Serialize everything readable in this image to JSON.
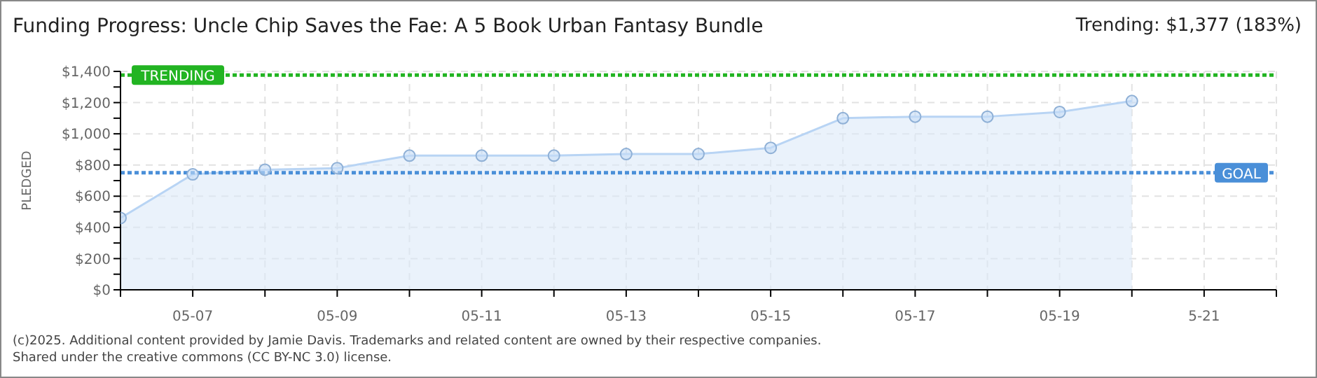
{
  "chart_data": {
    "type": "area",
    "title": "Funding Progress: Uncle Chip Saves the Fae: A 5 Book Urban Fantasy Bundle",
    "subtitle": "Trending: $1,377 (183%)",
    "ylabel": "PLEDGED",
    "categories": [
      null,
      "05-07",
      null,
      "05-09",
      null,
      "05-11",
      null,
      "05-13",
      null,
      "05-15",
      null,
      "05-17",
      null,
      "05-19",
      null,
      "5-21",
      null
    ],
    "series": [
      {
        "color": "#b8d4f4",
        "values": [
          460,
          740,
          770,
          780,
          860,
          860,
          860,
          870,
          870,
          910,
          1100,
          1110,
          1110,
          1140,
          1210,
          null,
          null
        ]
      }
    ],
    "ylim": [
      0,
      1400
    ],
    "yticks": [
      {
        "value": 0,
        "label": "$0"
      },
      {
        "value": 100,
        "label": null
      },
      {
        "value": 200,
        "label": "$200"
      },
      {
        "value": 300,
        "label": null
      },
      {
        "value": 400,
        "label": "$400"
      },
      {
        "value": 500,
        "label": null
      },
      {
        "value": 600,
        "label": "$600"
      },
      {
        "value": 700,
        "label": null
      },
      {
        "value": 800,
        "label": "$800"
      },
      {
        "value": 900,
        "label": null
      },
      {
        "value": 1000,
        "label": "$1,000"
      },
      {
        "value": 1100,
        "label": null
      },
      {
        "value": 1200,
        "label": "$1,200"
      },
      {
        "value": 1300,
        "label": null
      },
      {
        "value": 1400,
        "label": "$1,400"
      }
    ],
    "ref_lines": [
      {
        "axis": "y",
        "value": 750,
        "label": "GOAL",
        "color": "#4a8fd8",
        "line_style": "dotted"
      },
      {
        "axis": "y",
        "value": 1377,
        "label": "TRENDING",
        "color": "#22b422",
        "line_style": "dotted"
      }
    ],
    "grid": true,
    "marker": "circle",
    "annotations": [
      "(c)2025. Additional content provided by Jamie Davis. Trademarks and related content are owned by their respective companies.",
      "Shared under the creative commons (CC BY-NC 3.0) license."
    ]
  }
}
